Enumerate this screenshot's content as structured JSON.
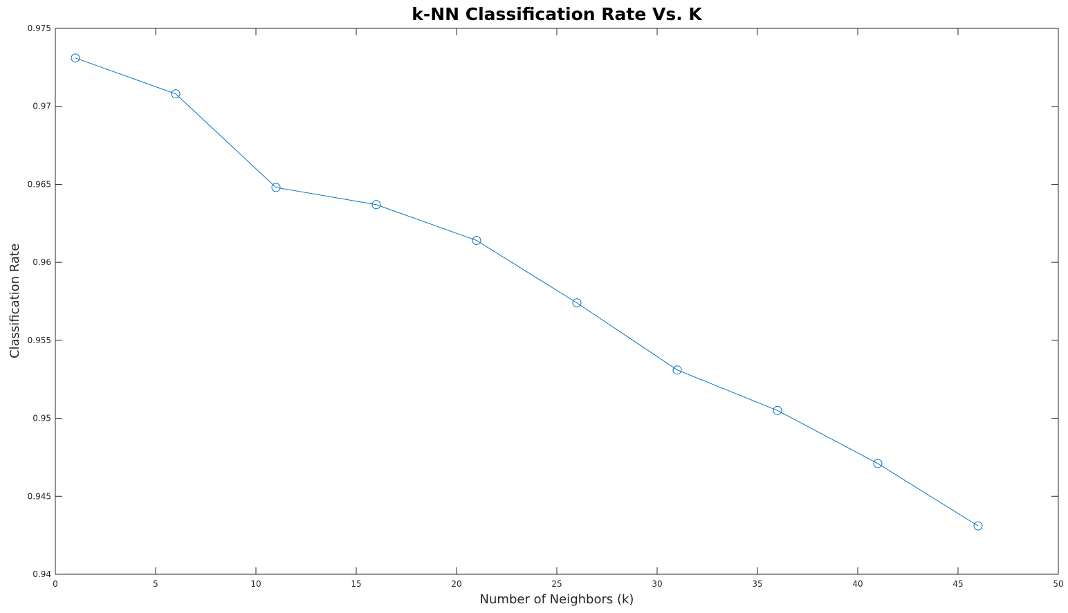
{
  "chart_data": {
    "type": "line",
    "title": "k-NN Classification Rate Vs. K",
    "xlabel": "Number of Neighbors (k)",
    "ylabel": "Classification Rate",
    "xlim": [
      0,
      50
    ],
    "ylim": [
      0.94,
      0.975
    ],
    "x_ticks": [
      0,
      5,
      10,
      15,
      20,
      25,
      30,
      35,
      40,
      45,
      50
    ],
    "x_tick_labels": [
      "0",
      "5",
      "10",
      "15",
      "20",
      "25",
      "30",
      "35",
      "40",
      "45",
      "50"
    ],
    "y_ticks": [
      0.94,
      0.945,
      0.95,
      0.955,
      0.96,
      0.965,
      0.97,
      0.975
    ],
    "y_tick_labels": [
      "0.94",
      "0.945",
      "0.95",
      "0.955",
      "0.96",
      "0.965",
      "0.97",
      "0.975"
    ],
    "grid": false,
    "marker": "circle",
    "series": [
      {
        "color": "#0072bd",
        "x": [
          1,
          6,
          11,
          16,
          21,
          26,
          31,
          36,
          41,
          46
        ],
        "y": [
          0.9731,
          0.9708,
          0.9648,
          0.9637,
          0.9614,
          0.9574,
          0.9531,
          0.9505,
          0.9471,
          0.9431
        ]
      }
    ]
  }
}
